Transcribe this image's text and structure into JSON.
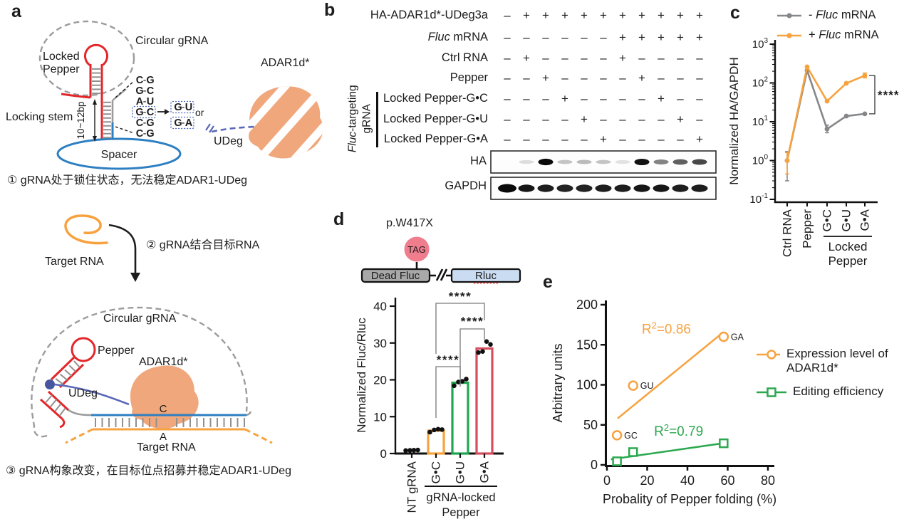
{
  "colors": {
    "pepper_red": "#E3262A",
    "spacer_blue": "#2E7FC2",
    "udeg_blue": "#5A68B8",
    "udeg_dot": "#47569F",
    "adar_peach": "#F0A77C",
    "dash_gray": "#9A9C9E",
    "rung_gray": "#909090",
    "series_gray": "#85878A",
    "series_orange": "#F7A23E",
    "bar_green": "#1DA750",
    "bar_red": "#D44E5E",
    "scatter_green": "#2BA84F",
    "base_red": "#E3262A",
    "base_gray": "#8A8A8A",
    "box_blue": "#4F6BBD",
    "tag_pink": "#EF7D8E",
    "tag_stroke": "#203864",
    "deadfluc_gray": "#A8A8A8",
    "rluc_blue": "#CADCF2",
    "underline_red": "#E03131"
  },
  "panel_a": {
    "label": "a",
    "top": {
      "circular_grna": "Circular gRNA",
      "locked_pepper_line1": "Locked",
      "locked_pepper_line2": "Pepper",
      "locking_stem": "Locking stem",
      "stem_length": "10~12bp",
      "spacer": "Spacer",
      "pair_sep": "-",
      "base_pairs": [
        {
          "l": "C",
          "r": "G",
          "boxed": false
        },
        {
          "l": "G",
          "r": "C",
          "boxed": false
        },
        {
          "l": "A",
          "r": "U",
          "boxed": false
        },
        {
          "l": "G",
          "r": "C",
          "boxed": true
        },
        {
          "l": "C",
          "r": "G",
          "boxed": false
        },
        {
          "l": "C",
          "r": "G",
          "boxed": false
        }
      ],
      "mutant_pairs": [
        {
          "l": "G",
          "r": "U"
        },
        {
          "l": "G",
          "r": "A"
        }
      ],
      "or_label": "or",
      "adar_label": "ADAR1d*",
      "udeg_label": "UDeg"
    },
    "step1_caption": "① gRNA处于锁住状态，无法稳定ADAR1-UDeg",
    "middle": {
      "target_rna_label": "Target RNA",
      "step2_caption": "② gRNA结合目标RNA"
    },
    "bottom": {
      "circular_grna": "Circular gRNA",
      "pepper": "Pepper",
      "adar_label": "ADAR1d*",
      "udeg_label": "UDeg",
      "edited_c": "C",
      "target_a": "A",
      "target_rna_label": "Target RNA"
    },
    "step3_caption": "③ gRNA构象改变，在目标位点招募并稳定ADAR1-UDeg"
  },
  "panel_b": {
    "label": "b",
    "rows": [
      {
        "pre": "",
        "it": "",
        "post": "HA-ADAR1d*-UDeg3a",
        "symbols": [
          "–",
          "+",
          "+",
          "+",
          "+",
          "+",
          "+",
          "+",
          "+",
          "+",
          "+"
        ]
      },
      {
        "pre": "",
        "it": "Fluc",
        "post": " mRNA",
        "symbols": [
          "–",
          "–",
          "–",
          "–",
          "–",
          "–",
          "+",
          "+",
          "+",
          "+",
          "+"
        ]
      },
      {
        "pre": "",
        "it": "",
        "post": "Ctrl RNA",
        "symbols": [
          "–",
          "+",
          "–",
          "–",
          "–",
          "–",
          "+",
          "–",
          "–",
          "–",
          "–"
        ]
      },
      {
        "pre": "",
        "it": "",
        "post": "Pepper",
        "symbols": [
          "–",
          "–",
          "+",
          "–",
          "–",
          "–",
          "–",
          "+",
          "–",
          "–",
          "–"
        ]
      },
      {
        "pre": "",
        "it": "",
        "post": "Locked Pepper-G•C",
        "symbols": [
          "–",
          "–",
          "–",
          "+",
          "–",
          "–",
          "–",
          "–",
          "+",
          "–",
          "–"
        ]
      },
      {
        "pre": "",
        "it": "",
        "post": "Locked Pepper-G•U",
        "symbols": [
          "–",
          "–",
          "–",
          "–",
          "+",
          "–",
          "–",
          "–",
          "–",
          "+",
          "–"
        ]
      },
      {
        "pre": "",
        "it": "",
        "post": "Locked Pepper-G•A",
        "symbols": [
          "–",
          "–",
          "–",
          "–",
          "–",
          "+",
          "–",
          "–",
          "–",
          "–",
          "+"
        ]
      }
    ],
    "bracket_label": {
      "it": "Fluc",
      "rest": "-targeting",
      "line2": "gRNA"
    },
    "blots": [
      {
        "label": "HA",
        "band_intensities": [
          0,
          0.08,
          0.95,
          0.18,
          0.22,
          0.18,
          0.06,
          0.92,
          0.45,
          0.6,
          0.7
        ]
      },
      {
        "label": "GAPDH",
        "band_intensities": [
          1,
          0.95,
          0.92,
          0.9,
          0.9,
          0.92,
          0.92,
          0.95,
          0.95,
          0.92,
          0.92
        ]
      }
    ]
  },
  "panel_c": {
    "label": "c",
    "legend": [
      {
        "prefix": "- ",
        "italic": "Fluc",
        "rest": " mRNA"
      },
      {
        "prefix": "+ ",
        "italic": "Fluc",
        "rest": " mRNA"
      }
    ]
  },
  "panel_d": {
    "label": "d",
    "construct": {
      "mutation_label": "p.W417X",
      "stop_codon": "TAG",
      "left_box": "Dead Fluc",
      "right_box": "Rluc"
    }
  },
  "panel_e": {
    "label": "e",
    "legend": [
      {
        "label": "Expression level of ADAR1d*"
      },
      {
        "label": "Editing efficiency"
      }
    ]
  },
  "chart_data": [
    {
      "id": "panel_c",
      "type": "line",
      "yscale": "log",
      "ylabel": "Normalized HA/GAPDH",
      "ytick_base": "10",
      "ytick_exponents": [
        -1,
        0,
        1,
        2,
        3
      ],
      "ylim": [
        0.1,
        1000
      ],
      "categories": [
        "Ctrl RNA",
        "Pepper",
        "G•C",
        "G•U",
        "G•A"
      ],
      "group_label": [
        "Locked",
        "Pepper"
      ],
      "group_span": [
        2,
        4
      ],
      "series": [
        {
          "name": "- Fluc mRNA",
          "color": "#85878A",
          "values": [
            1,
            210,
            6.5,
            14,
            16
          ],
          "errors": [
            [
              0.3,
              1.7
            ],
            null,
            [
              5.2,
              8.2
            ],
            null,
            null
          ]
        },
        {
          "name": "+ Fluc mRNA",
          "color": "#F7A23E",
          "values": [
            1,
            260,
            34,
            98,
            155
          ],
          "errors": [
            [
              0.45,
              1.6
            ],
            null,
            null,
            null,
            [
              135,
              180
            ]
          ]
        }
      ],
      "significance": {
        "label": "****",
        "from_value": 155,
        "to_value": 16
      }
    },
    {
      "id": "panel_d",
      "type": "bar",
      "ylabel": "Normalized Fluc/Rluc",
      "ylim": [
        0,
        40
      ],
      "yticks": [
        0,
        10,
        20,
        30,
        40
      ],
      "categories": [
        "NT gRNA",
        "G•C",
        "G•U",
        "G•A"
      ],
      "group_label": [
        "gRNA-locked",
        "Pepper"
      ],
      "group_span": [
        1,
        3
      ],
      "values": [
        0.9,
        6.2,
        19.2,
        28.5
      ],
      "bar_colors": [
        "#000000",
        "#F7A23E",
        "#1DA750",
        "#D44E5E"
      ],
      "points": [
        [
          0.8,
          0.85,
          0.9,
          0.95
        ],
        [
          5.8,
          6.4,
          6.6,
          6.5
        ],
        [
          18.4,
          19.4,
          19.6,
          20.2
        ],
        [
          27.4,
          27.7,
          30.4,
          29.6
        ]
      ],
      "sig_brackets": [
        {
          "from": 1,
          "to": 2,
          "label": "****"
        },
        {
          "from": 2,
          "to": 3,
          "label": "****"
        },
        {
          "from": 1,
          "to": 3,
          "label": "****"
        }
      ]
    },
    {
      "id": "panel_e",
      "type": "scatter",
      "xlabel": "Probality of Pepper folding (%)",
      "ylabel": "Arbitrary units",
      "xlim": [
        0,
        80
      ],
      "ylim": [
        0,
        200
      ],
      "xticks": [
        0,
        20,
        40,
        60,
        80
      ],
      "yticks": [
        0,
        50,
        100,
        150,
        200
      ],
      "series": [
        {
          "name": "Expression level of ADAR1d*",
          "color": "#F7A23E",
          "marker": "circle",
          "r2": "0.86",
          "points": [
            {
              "x": 5,
              "y": 37,
              "label": "GC"
            },
            {
              "x": 13,
              "y": 99,
              "label": "GU"
            },
            {
              "x": 58,
              "y": 160,
              "label": "GA"
            }
          ],
          "fit_line": {
            "x1": 5.3,
            "y1": 58,
            "x2": 57,
            "y2": 164
          },
          "r2_pos": {
            "x": 17.3,
            "y": 164
          }
        },
        {
          "name": "Editing efficiency",
          "color": "#2BA84F",
          "marker": "square",
          "r2": "0.79",
          "points": [
            {
              "x": 5,
              "y": 4.5
            },
            {
              "x": 13,
              "y": 16
            },
            {
              "x": 58,
              "y": 27
            }
          ],
          "fit_line": {
            "x1": 2,
            "y1": 7,
            "x2": 59,
            "y2": 27.5
          },
          "r2_pos": {
            "x": 23.4,
            "y": 36.4
          }
        }
      ]
    }
  ]
}
